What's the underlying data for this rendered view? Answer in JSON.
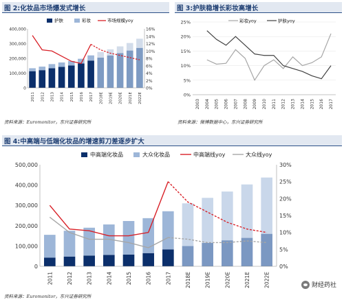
{
  "panel2": {
    "title": "图 2:化妆品市场爆发式增长",
    "source": "资料来源：Euromonitor，东兴证券研究所"
  },
  "panel3": {
    "title": "图 3:护肤稳增长彩妆高增长",
    "source": "资料来源：微博数据中心，东兴证券研究所"
  },
  "panel4": {
    "title": "图 4:中高端与低端化妆品的增速剪刀差逐步扩大",
    "source": "资料来源：Euromonitor，东兴证券研究所"
  },
  "watermark": "财经药社",
  "colors": {
    "navy": "#0b2f6b",
    "lightblue": "#9db6d8",
    "palerblue": "#c9d7ea",
    "red": "#d81f26",
    "gray": "#a6a6a6",
    "darkgray": "#404040",
    "title": "#1f3f73"
  },
  "chart_data": [
    {
      "id": "chart2",
      "type": "bar",
      "stacked": true,
      "categories": [
        "2011",
        "2012",
        "2013",
        "2014",
        "2015",
        "2016",
        "2017",
        "2018E",
        "2019E",
        "2020E",
        "2021E",
        "2022E"
      ],
      "series": [
        {
          "name": "护肤",
          "values": [
            113,
            120,
            133,
            142,
            152,
            165,
            185,
            205,
            220,
            236,
            253,
            271
          ]
        },
        {
          "name": "彩妆",
          "values": [
            20,
            24,
            28,
            30,
            30,
            32,
            35,
            38,
            41,
            45,
            51,
            62
          ]
        },
        {
          "name": "市场规模yoy",
          "axis": "right",
          "values": [
            14.2,
            10.3,
            10.0,
            8.6,
            7.2,
            6.6,
            11.8,
            10.3,
            9.4,
            8.8,
            8.2,
            7.6
          ]
        }
      ],
      "ylim": [
        0,
        400
      ],
      "yticks": [
        "0",
        "100,000",
        "200,000",
        "300,000",
        "400,000"
      ],
      "y2lim": [
        0,
        16
      ],
      "y2ticks": [
        "0%",
        "2%",
        "4%",
        "6%",
        "8%",
        "10%",
        "12%",
        "14%",
        "16%"
      ],
      "legend": "top"
    },
    {
      "id": "chart3",
      "type": "line",
      "categories": [
        "2003",
        "2004",
        "2005",
        "2006",
        "2007",
        "2008",
        "2009",
        "2010",
        "2011",
        "2012",
        "2013",
        "2014",
        "2015",
        "2016",
        "2017"
      ],
      "series": [
        {
          "name": "彩妆yoy",
          "values": [
            null,
            12,
            10.5,
            10.8,
            15.5,
            12.5,
            5,
            10,
            12,
            9,
            13,
            10,
            11,
            13,
            21
          ]
        },
        {
          "name": "护肤yoy",
          "values": [
            null,
            22,
            19,
            17,
            20,
            17,
            14,
            13.5,
            13.5,
            10,
            9,
            8,
            6.5,
            5.5,
            10
          ]
        }
      ],
      "ylim": [
        0,
        25
      ],
      "yticks": [
        "0%",
        "5%",
        "10%",
        "15%",
        "20%",
        "25%"
      ],
      "legend": "top"
    },
    {
      "id": "chart4",
      "type": "bar",
      "stacked": true,
      "categories": [
        "2011",
        "2012",
        "2013",
        "2014",
        "2015",
        "2016",
        "2017",
        "2018E",
        "2019E",
        "2020E",
        "2021E",
        "2022E"
      ],
      "series": [
        {
          "name": "中高端化妆品",
          "values": [
            43,
            48,
            53,
            56,
            58,
            65,
            83,
            100,
            115,
            128,
            140,
            160
          ]
        },
        {
          "name": "大众化妆品",
          "values": [
            112,
            127,
            137,
            150,
            165,
            172,
            188,
            210,
            222,
            240,
            263,
            277
          ]
        },
        {
          "name": "中高端线yoy",
          "axis": "right",
          "values": [
            18,
            11,
            10.5,
            9,
            9,
            10,
            25,
            19,
            16,
            13,
            11,
            10
          ]
        },
        {
          "name": "大众线yoy",
          "axis": "right",
          "values": [
            14.5,
            10,
            8,
            8,
            7,
            5.5,
            8.5,
            8,
            7,
            7,
            7.5,
            7
          ]
        }
      ],
      "ylim": [
        0,
        500
      ],
      "yticks": [
        "0",
        "100,000",
        "200,000",
        "300,000",
        "400,000",
        "500,000"
      ],
      "y2lim": [
        0,
        30
      ],
      "y2ticks": [
        "0%",
        "5%",
        "10%",
        "15%",
        "20%",
        "25%",
        "30%"
      ],
      "legend": "top"
    }
  ]
}
